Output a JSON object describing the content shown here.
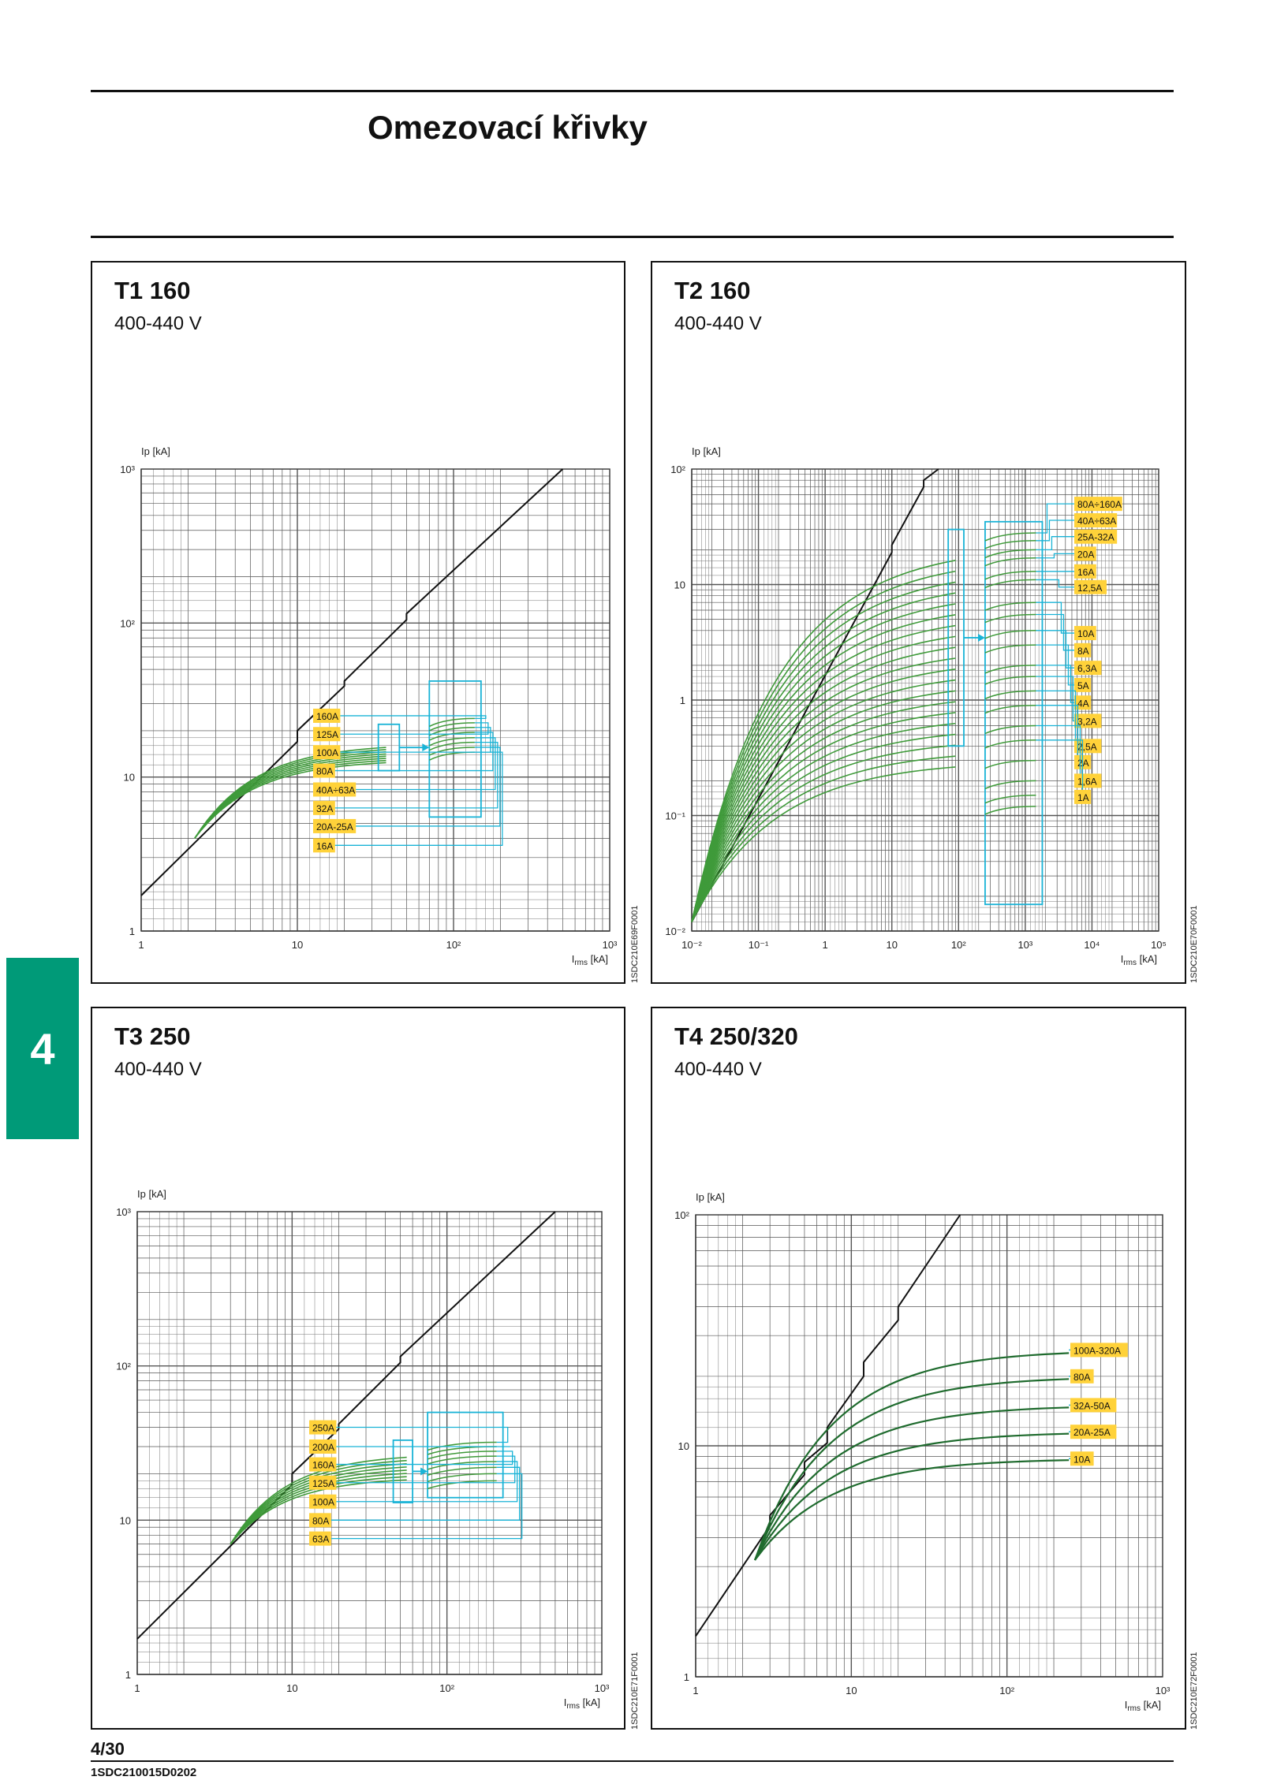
{
  "page_title": "Omezovací křivky",
  "section_tab": "4",
  "footer": {
    "page_number": "4/30",
    "document_code": "1SDC210015D0202"
  },
  "colors": {
    "curve": "#3f9a3a",
    "curve_dark": "#1f6b2e",
    "cyan": "#19b3d6",
    "label_bg": "#ffd23a",
    "tab": "#009a78",
    "line": "#111111"
  },
  "chart_data": [
    {
      "type": "line",
      "title": "T1 160",
      "subtitle": "400-440 V",
      "ylabel": "Ip [kA]",
      "xlabel_main": "I",
      "xlabel_sub": "rms",
      "xlabel_unit": " [kA]",
      "scale": "log-log",
      "xlim": [
        1,
        1000
      ],
      "ylim": [
        1,
        1000
      ],
      "x_ticks": [
        {
          "v": 1,
          "t": "1"
        },
        {
          "v": 10,
          "t": "10"
        },
        {
          "v": 100,
          "t": "10²"
        },
        {
          "v": 1000,
          "t": "10³"
        }
      ],
      "y_ticks": [
        {
          "v": 1,
          "t": "1"
        },
        {
          "v": 10,
          "t": "10"
        },
        {
          "v": 100,
          "t": "10²"
        },
        {
          "v": 1000,
          "t": "10³"
        }
      ],
      "code": "1SDC210E69F0001",
      "envelope": [
        [
          1,
          1.7
        ],
        [
          10,
          17
        ],
        [
          10,
          20
        ],
        [
          20,
          39
        ],
        [
          20,
          42
        ],
        [
          50,
          105
        ],
        [
          50,
          115
        ],
        [
          500,
          1000
        ]
      ],
      "start": [
        2.2,
        4
      ],
      "curve_end_x": 37,
      "curve_end_y": [
        16.5,
        13
      ],
      "box1": [
        33,
        45,
        11,
        22
      ],
      "box2": [
        70,
        150,
        5.5,
        42
      ],
      "curve_ys": [
        24,
        22.5,
        21,
        19.5,
        18,
        16.8,
        15.6,
        14.5
      ],
      "curve_end2": 115,
      "labels": [
        {
          "t": "160A",
          "y": 25
        },
        {
          "t": "125A",
          "y": 19
        },
        {
          "t": "100A",
          "y": 14.5
        },
        {
          "t": "80A",
          "y": 11
        },
        {
          "t": "40A÷63A",
          "y": 8.3
        },
        {
          "t": "32A",
          "y": 6.3
        },
        {
          "t": "20A-25A",
          "y": 4.8
        },
        {
          "t": "16A",
          "y": 3.6
        }
      ],
      "label_x": 280
    },
    {
      "type": "line",
      "title": "T2 160",
      "subtitle": "400-440 V",
      "ylabel": "Ip [kA]",
      "xlabel_main": "I",
      "xlabel_sub": "rms",
      "xlabel_unit": " [kA]",
      "scale": "log-log",
      "xlim": [
        0.01,
        100000
      ],
      "ylim": [
        0.01,
        100
      ],
      "x_ticks": [
        {
          "v": 0.01,
          "t": "10⁻²"
        },
        {
          "v": 0.1,
          "t": "10⁻¹"
        },
        {
          "v": 1,
          "t": "1"
        },
        {
          "v": 10,
          "t": "10"
        },
        {
          "v": 100,
          "t": "10²"
        },
        {
          "v": 1000,
          "t": "10³"
        },
        {
          "v": 10000,
          "t": "10⁴"
        },
        {
          "v": 100000,
          "t": "10⁵"
        }
      ],
      "y_ticks": [
        {
          "v": 0.01,
          "t": "10⁻²"
        },
        {
          "v": 0.1,
          "t": "10⁻¹"
        },
        {
          "v": 1,
          "t": "1"
        },
        {
          "v": 10,
          "t": "10"
        },
        {
          "v": 100,
          "t": "10²"
        }
      ],
      "code": "1SDC210E70F0001",
      "envelope": [
        [
          0.01,
          0.012
        ],
        [
          10,
          19
        ],
        [
          10,
          22
        ],
        [
          30,
          70
        ],
        [
          30,
          80
        ],
        [
          50,
          100
        ]
      ],
      "start": [
        0.01,
        0.012
      ],
      "curve_end_x": 90,
      "curve_end_y": [
        22,
        0.3
      ],
      "box1": [
        70,
        120,
        0.4,
        30
      ],
      "box2": [
        250,
        1800,
        0.017,
        35
      ],
      "curve_ys": [
        28,
        24,
        20,
        17,
        13,
        11,
        7,
        5.5,
        4,
        3,
        2,
        1.6,
        1.2,
        0.9,
        0.6,
        0.45,
        0.3,
        0.2,
        0.15,
        0.12
      ],
      "curve_end2": 1800,
      "labels": [
        {
          "t": "80A÷160A",
          "y": 50
        },
        {
          "t": "40A÷63A",
          "y": 36
        },
        {
          "t": "25A-32A",
          "y": 26
        },
        {
          "t": "20A",
          "y": 18.5
        },
        {
          "t": "16A",
          "y": 13
        },
        {
          "t": "12,5A",
          "y": 9.5
        },
        {
          "t": "10A",
          "y": 3.8
        },
        {
          "t": "8A",
          "y": 2.7
        },
        {
          "t": "6,3A",
          "y": 1.9
        },
        {
          "t": "5A",
          "y": 1.35
        },
        {
          "t": "4A",
          "y": 0.95
        },
        {
          "t": "3,2A",
          "y": 0.66
        },
        {
          "t": "2,5A",
          "y": 0.4
        },
        {
          "t": "2A",
          "y": 0.29
        },
        {
          "t": "1,6A",
          "y": 0.2
        },
        {
          "t": "1A",
          "y": 0.145
        }
      ],
      "label_x": 535
    },
    {
      "type": "line",
      "title": "T3 250",
      "subtitle": "400-440 V",
      "ylabel": "Ip [kA]",
      "xlabel_main": "I",
      "xlabel_sub": "rms",
      "xlabel_unit": " [kA]",
      "scale": "log-log",
      "xlim": [
        1,
        1000
      ],
      "ylim": [
        1,
        1000
      ],
      "x_ticks": [
        {
          "v": 1,
          "t": "1"
        },
        {
          "v": 10,
          "t": "10"
        },
        {
          "v": 100,
          "t": "10²"
        },
        {
          "v": 1000,
          "t": "10³"
        }
      ],
      "y_ticks": [
        {
          "v": 1,
          "t": "1"
        },
        {
          "v": 10,
          "t": "10"
        },
        {
          "v": 100,
          "t": "10²"
        },
        {
          "v": 1000,
          "t": "10³"
        }
      ],
      "code": "1SDC210E71F0001",
      "envelope": [
        [
          1,
          1.7
        ],
        [
          10,
          17
        ],
        [
          10,
          20
        ],
        [
          20,
          39
        ],
        [
          20,
          42
        ],
        [
          50,
          105
        ],
        [
          50,
          115
        ],
        [
          500,
          1000
        ]
      ],
      "start": [
        4,
        7
      ],
      "curve_end_x": 55,
      "curve_end_y": [
        27,
        19
      ],
      "box1": [
        45,
        60,
        13,
        33
      ],
      "box2": [
        75,
        230,
        14,
        50
      ],
      "curve_ys": [
        32,
        30,
        28,
        26,
        24,
        22,
        20,
        18
      ],
      "curve_end2": 230,
      "labels": [
        {
          "t": "250A",
          "y": 40
        },
        {
          "t": "200A",
          "y": 30
        },
        {
          "t": "160A",
          "y": 23
        },
        {
          "t": "125A",
          "y": 17.5
        },
        {
          "t": "100A",
          "y": 13.2
        },
        {
          "t": "80A",
          "y": 10
        },
        {
          "t": "63A",
          "y": 7.6
        }
      ],
      "label_x": 275
    },
    {
      "type": "line",
      "title": "T4 250/320",
      "subtitle": "400-440 V",
      "ylabel": "Ip [kA]",
      "xlabel_main": "I",
      "xlabel_sub": "rms",
      "xlabel_unit": " [kA]",
      "scale": "log-log",
      "xlim": [
        1,
        1000
      ],
      "ylim": [
        1,
        100
      ],
      "x_ticks": [
        {
          "v": 1,
          "t": "1"
        },
        {
          "v": 10,
          "t": "10"
        },
        {
          "v": 100,
          "t": "10²"
        },
        {
          "v": 1000,
          "t": "10³"
        }
      ],
      "y_ticks": [
        {
          "v": 1,
          "t": "1"
        },
        {
          "v": 10,
          "t": "10"
        },
        {
          "v": 100,
          "t": "10²"
        }
      ],
      "code": "1SDC210E72F0001",
      "envelope": [
        [
          1,
          1.5
        ],
        [
          3,
          4.5
        ],
        [
          3,
          5
        ],
        [
          5,
          7.5
        ],
        [
          5,
          8.5
        ],
        [
          7,
          10.3
        ],
        [
          7,
          12
        ],
        [
          12,
          20
        ],
        [
          12,
          23
        ],
        [
          20,
          35
        ],
        [
          20,
          40
        ],
        [
          50,
          100
        ]
      ],
      "start": [
        2.4,
        3.2
      ],
      "dark": true,
      "series": [
        {
          "name": "100A-320A",
          "end": 26,
          "k": 0.9
        },
        {
          "name": "80A",
          "end": 20,
          "k": 0.9
        },
        {
          "name": "32A-50A",
          "end": 15,
          "k": 0.9
        },
        {
          "name": "20A-25A",
          "end": 11.5,
          "k": 0.9
        },
        {
          "name": "10A",
          "end": 8.8,
          "k": 0.9
        }
      ],
      "label_x": 530
    }
  ]
}
